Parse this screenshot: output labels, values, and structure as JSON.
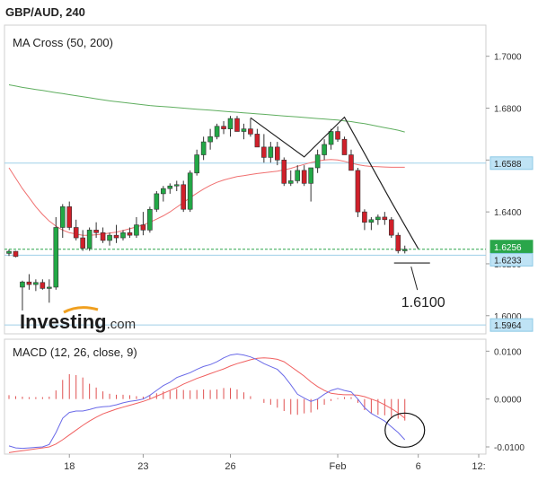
{
  "header": {
    "symbol_title": "GBP/AUD, 240"
  },
  "colors": {
    "bull": "#22a846",
    "bear": "#d0202a",
    "ma_fast": "#f07070",
    "ma_slow": "#5fae5f",
    "hline": "#9fcfe8",
    "current": "#2aa64a",
    "price_tag_text": "#222222",
    "macd_line": "#6a6ae8",
    "signal_line": "#f06060",
    "hist": "#e05050",
    "annotation": "#222222"
  },
  "chart_data": [
    {
      "type": "candlestick",
      "title": "MA Cross (50, 200)",
      "y_ticks": [
        "1.7000",
        "1.6800",
        "1.6600",
        "1.6400",
        "1.6200",
        "1.6000"
      ],
      "x_ticks": [
        "18",
        "23",
        "26",
        "Feb",
        "6",
        "12:"
      ],
      "ylim": [
        1.593,
        1.712
      ],
      "candles": [
        [
          1.624,
          1.6255,
          1.623,
          1.6248
        ],
        [
          1.6248,
          1.625,
          1.6225,
          1.6228
        ],
        [
          1.611,
          1.6135,
          1.602,
          1.613
        ],
        [
          1.613,
          1.616,
          1.61,
          1.612
        ],
        [
          1.612,
          1.614,
          1.6095,
          1.6128
        ],
        [
          1.6128,
          1.614,
          1.61,
          1.6105
        ],
        [
          1.6105,
          1.614,
          1.605,
          1.611
        ],
        [
          1.611,
          1.638,
          1.61,
          1.634
        ],
        [
          1.634,
          1.643,
          1.63,
          1.642
        ],
        [
          1.642,
          1.644,
          1.633,
          1.634
        ],
        [
          1.634,
          1.637,
          1.629,
          1.63
        ],
        [
          1.63,
          1.633,
          1.625,
          1.626
        ],
        [
          1.626,
          1.634,
          1.625,
          1.633
        ],
        [
          1.633,
          1.636,
          1.63,
          1.632
        ],
        [
          1.632,
          1.634,
          1.628,
          1.629
        ],
        [
          1.629,
          1.632,
          1.627,
          1.631
        ],
        [
          1.631,
          1.635,
          1.628,
          1.63
        ],
        [
          1.63,
          1.633,
          1.629,
          1.632
        ],
        [
          1.632,
          1.634,
          1.63,
          1.631
        ],
        [
          1.631,
          1.638,
          1.63,
          1.635
        ],
        [
          1.635,
          1.64,
          1.631,
          1.633
        ],
        [
          1.633,
          1.642,
          1.632,
          1.641
        ],
        [
          1.641,
          1.648,
          1.64,
          1.647
        ],
        [
          1.647,
          1.65,
          1.644,
          1.649
        ],
        [
          1.649,
          1.651,
          1.647,
          1.65
        ],
        [
          1.65,
          1.652,
          1.648,
          1.6505
        ],
        [
          1.6505,
          1.652,
          1.64,
          1.641
        ],
        [
          1.641,
          1.656,
          1.64,
          1.655
        ],
        [
          1.655,
          1.664,
          1.654,
          1.662
        ],
        [
          1.662,
          1.669,
          1.66,
          1.667
        ],
        [
          1.667,
          1.672,
          1.664,
          1.669
        ],
        [
          1.669,
          1.674,
          1.668,
          1.673
        ],
        [
          1.673,
          1.675,
          1.67,
          1.672
        ],
        [
          1.672,
          1.677,
          1.669,
          1.676
        ],
        [
          1.676,
          1.677,
          1.671,
          1.671
        ],
        [
          1.671,
          1.674,
          1.668,
          1.672
        ],
        [
          1.672,
          1.676,
          1.669,
          1.67
        ],
        [
          1.67,
          1.672,
          1.665,
          1.665
        ],
        [
          1.665,
          1.67,
          1.659,
          1.661
        ],
        [
          1.661,
          1.667,
          1.659,
          1.665
        ],
        [
          1.665,
          1.667,
          1.658,
          1.66
        ],
        [
          1.66,
          1.661,
          1.65,
          1.651
        ],
        [
          1.651,
          1.656,
          1.65,
          1.652
        ],
        [
          1.652,
          1.658,
          1.651,
          1.656
        ],
        [
          1.656,
          1.658,
          1.65,
          1.651
        ],
        [
          1.651,
          1.657,
          1.644,
          1.657
        ],
        [
          1.657,
          1.664,
          1.655,
          1.662
        ],
        [
          1.662,
          1.668,
          1.66,
          1.666
        ],
        [
          1.666,
          1.672,
          1.664,
          1.671
        ],
        [
          1.671,
          1.673,
          1.667,
          1.668
        ],
        [
          1.668,
          1.669,
          1.662,
          1.662
        ],
        [
          1.662,
          1.664,
          1.656,
          1.656
        ],
        [
          1.656,
          1.657,
          1.638,
          1.64
        ],
        [
          1.64,
          1.641,
          1.633,
          1.636
        ],
        [
          1.636,
          1.638,
          1.633,
          1.637
        ],
        [
          1.637,
          1.639,
          1.635,
          1.638
        ],
        [
          1.638,
          1.64,
          1.635,
          1.637
        ],
        [
          1.637,
          1.638,
          1.63,
          1.631
        ],
        [
          1.631,
          1.632,
          1.624,
          1.625
        ],
        [
          1.625,
          1.627,
          1.624,
          1.6256
        ]
      ],
      "ma50": [
        1.657,
        1.653,
        1.649,
        1.6455,
        1.642,
        1.639,
        1.6365,
        1.6345,
        1.633,
        1.632,
        1.6315,
        1.631,
        1.631,
        1.6312,
        1.6315,
        1.6318,
        1.6322,
        1.6328,
        1.6335,
        1.6342,
        1.635,
        1.636,
        1.6372,
        1.6385,
        1.64,
        1.6418,
        1.6436,
        1.6455,
        1.6472,
        1.6488,
        1.6502,
        1.6514,
        1.6523,
        1.653,
        1.6536,
        1.654,
        1.6544,
        1.6548,
        1.6551,
        1.6554,
        1.6557,
        1.6562,
        1.6568,
        1.6576,
        1.6583,
        1.659,
        1.6596,
        1.66,
        1.6602,
        1.66,
        1.6595,
        1.6588,
        1.6582,
        1.6578,
        1.6575,
        1.6574,
        1.6573,
        1.6572,
        1.6572,
        1.6572
      ],
      "ma200": [
        1.689,
        1.6885,
        1.688,
        1.6876,
        1.6872,
        1.6868,
        1.6864,
        1.686,
        1.6856,
        1.6852,
        1.6848,
        1.6844,
        1.684,
        1.6836,
        1.6832,
        1.6828,
        1.6825,
        1.6822,
        1.6819,
        1.6816,
        1.6813,
        1.681,
        1.6808,
        1.6806,
        1.6804,
        1.6802,
        1.68,
        1.6798,
        1.6796,
        1.6794,
        1.6792,
        1.679,
        1.6788,
        1.6786,
        1.6784,
        1.6782,
        1.678,
        1.6778,
        1.6776,
        1.6774,
        1.6772,
        1.677,
        1.6768,
        1.6766,
        1.6764,
        1.6762,
        1.676,
        1.6758,
        1.6756,
        1.6754,
        1.6751,
        1.6748,
        1.6744,
        1.674,
        1.6735,
        1.673,
        1.6725,
        1.672,
        1.6715,
        1.6708
      ],
      "horizontal_lines": [
        {
          "label": "1.6588",
          "value": 1.6588,
          "kind": "level"
        },
        {
          "label": "1.6256",
          "value": 1.6256,
          "kind": "current"
        },
        {
          "label": "1.6233",
          "value": 1.6233,
          "kind": "level"
        },
        {
          "label": "1.5964",
          "value": 1.5964,
          "kind": "level"
        }
      ],
      "annotation": {
        "label": "1.6100",
        "target_value": 1.6203
      },
      "zigzag": [
        [
          36,
          1.6763
        ],
        [
          44,
          1.6612
        ],
        [
          50,
          1.6765
        ],
        [
          57,
          1.6438
        ],
        [
          61,
          1.6258
        ]
      ]
    },
    {
      "type": "line",
      "title": "MACD (12, 26, close, 9)",
      "y_ticks": [
        "0.0100",
        "0.0000",
        "-0.0100"
      ],
      "ylim": [
        -0.0115,
        0.0125
      ],
      "macd": [
        -0.0098,
        -0.0102,
        -0.0103,
        -0.0102,
        -0.0101,
        -0.01,
        -0.0095,
        -0.007,
        -0.004,
        -0.0028,
        -0.0025,
        -0.0025,
        -0.0022,
        -0.0018,
        -0.0016,
        -0.0015,
        -0.0012,
        -0.0008,
        -0.0005,
        -0.0003,
        0.0,
        0.0008,
        0.0018,
        0.0028,
        0.0035,
        0.0045,
        0.005,
        0.0055,
        0.0062,
        0.0068,
        0.0072,
        0.0078,
        0.0086,
        0.0092,
        0.0094,
        0.0092,
        0.0088,
        0.0082,
        0.0074,
        0.0068,
        0.0062,
        0.0048,
        0.003,
        0.001,
        0.0002,
        -0.0005,
        0.0,
        0.001,
        0.0018,
        0.0022,
        0.0018,
        0.0015,
        0.0,
        -0.0018,
        -0.003,
        -0.0038,
        -0.0046,
        -0.0058,
        -0.007,
        -0.0085
      ],
      "signal": [
        -0.0112,
        -0.011,
        -0.0108,
        -0.0106,
        -0.0104,
        -0.0102,
        -0.01,
        -0.0094,
        -0.0085,
        -0.0075,
        -0.0065,
        -0.0055,
        -0.0046,
        -0.0038,
        -0.0031,
        -0.0026,
        -0.0021,
        -0.0017,
        -0.0013,
        -0.0009,
        -0.0005,
        0.0,
        0.0006,
        0.0012,
        0.0018,
        0.0024,
        0.0031,
        0.0037,
        0.0043,
        0.0048,
        0.0053,
        0.0058,
        0.0063,
        0.0069,
        0.0074,
        0.0078,
        0.0082,
        0.0085,
        0.0086,
        0.0085,
        0.0083,
        0.0078,
        0.0068,
        0.0058,
        0.0048,
        0.0036,
        0.0026,
        0.0018,
        0.0012,
        0.001,
        0.0009,
        0.0009,
        0.0008,
        0.0005,
        0.0,
        -0.0005,
        -0.0012,
        -0.002,
        -0.0029,
        -0.004
      ],
      "histogram": [
        0.0008,
        0.0006,
        0.0005,
        0.0004,
        0.0004,
        0.0004,
        0.0005,
        0.0018,
        0.004,
        0.0052,
        0.005,
        0.0045,
        0.0032,
        0.0024,
        0.0016,
        0.0011,
        0.0009,
        0.0009,
        0.0008,
        0.0006,
        0.0005,
        0.0008,
        0.0012,
        0.0016,
        0.0017,
        0.0021,
        0.0019,
        0.0018,
        0.0019,
        0.002,
        0.0019,
        0.002,
        0.0023,
        0.0023,
        0.002,
        0.0014,
        0.0006,
        0.0,
        -0.0008,
        -0.0012,
        -0.0018,
        -0.0025,
        -0.0032,
        -0.0033,
        -0.003,
        -0.0028,
        -0.0022,
        -0.0012,
        -0.0004,
        0.0002,
        0.0004,
        0.0004,
        -0.0008,
        -0.0023,
        -0.003,
        -0.0033,
        -0.0034,
        -0.0038,
        -0.0041,
        -0.0045
      ]
    }
  ],
  "branding": {
    "logo_main": "Investing",
    "logo_suffix": ".com"
  }
}
